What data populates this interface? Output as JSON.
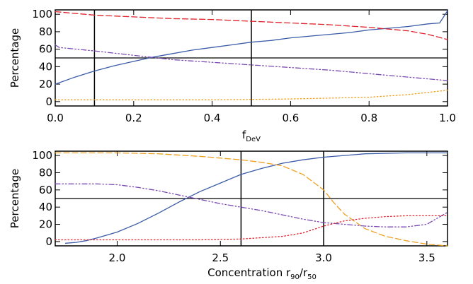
{
  "colors": {
    "blue": "#3a5ba8",
    "red": "#e0202a",
    "purple": "#7a4ab3",
    "orange": "#f0a020",
    "axis": "#000000"
  },
  "chart_data": [
    {
      "type": "line",
      "xlabel_main": "f",
      "xlabel_sub": "DeV",
      "ylabel": "Percentage",
      "xlim": [
        0.0,
        1.0
      ],
      "ylim": [
        -5,
        105
      ],
      "xticks": [
        0.0,
        0.2,
        0.4,
        0.6,
        0.8,
        1.0
      ],
      "xtick_labels": [
        "0.0",
        "0.2",
        "0.4",
        "0.6",
        "0.8",
        "1.0"
      ],
      "yticks": [
        0,
        20,
        40,
        60,
        80,
        100
      ],
      "ytick_labels": [
        "0",
        "20",
        "40",
        "60",
        "80",
        "100"
      ],
      "vlines": [
        0.1,
        0.5
      ],
      "hlines": [
        50
      ],
      "series": [
        {
          "color_key": "blue",
          "style": "solid",
          "points": [
            [
              0.0,
              20
            ],
            [
              0.05,
              28
            ],
            [
              0.1,
              35
            ],
            [
              0.15,
              41
            ],
            [
              0.2,
              46
            ],
            [
              0.25,
              51
            ],
            [
              0.3,
              55
            ],
            [
              0.35,
              59
            ],
            [
              0.4,
              62
            ],
            [
              0.45,
              65
            ],
            [
              0.5,
              68
            ],
            [
              0.55,
              70
            ],
            [
              0.6,
              73
            ],
            [
              0.65,
              75
            ],
            [
              0.7,
              77
            ],
            [
              0.75,
              79
            ],
            [
              0.8,
              82
            ],
            [
              0.85,
              84
            ],
            [
              0.9,
              86
            ],
            [
              0.95,
              89
            ],
            [
              0.98,
              90
            ],
            [
              0.99,
              97
            ],
            [
              1.0,
              104
            ]
          ]
        },
        {
          "color_key": "red",
          "style": "dash",
          "points": [
            [
              0.0,
              103
            ],
            [
              0.1,
              99
            ],
            [
              0.2,
              97
            ],
            [
              0.3,
              95
            ],
            [
              0.4,
              94
            ],
            [
              0.5,
              92
            ],
            [
              0.6,
              90
            ],
            [
              0.7,
              88
            ],
            [
              0.8,
              85
            ],
            [
              0.9,
              81
            ],
            [
              0.95,
              77
            ],
            [
              1.0,
              71
            ]
          ]
        },
        {
          "color_key": "purple",
          "style": "dashdotdot",
          "points": [
            [
              0.0,
              65
            ],
            [
              0.01,
              62
            ],
            [
              0.1,
              58
            ],
            [
              0.2,
              53
            ],
            [
              0.3,
              48
            ],
            [
              0.4,
              45
            ],
            [
              0.5,
              42
            ],
            [
              0.6,
              39
            ],
            [
              0.7,
              36
            ],
            [
              0.8,
              32
            ],
            [
              0.9,
              28
            ],
            [
              1.0,
              24
            ]
          ]
        },
        {
          "color_key": "orange",
          "style": "dot",
          "points": [
            [
              0.0,
              2
            ],
            [
              0.2,
              2
            ],
            [
              0.4,
              2
            ],
            [
              0.6,
              3
            ],
            [
              0.7,
              4
            ],
            [
              0.8,
              5
            ],
            [
              0.9,
              8
            ],
            [
              1.0,
              13
            ]
          ]
        }
      ]
    },
    {
      "type": "line",
      "xlabel_main": "Concentration r",
      "xlabel_sub1": "90",
      "xlabel_slash": "/r",
      "xlabel_sub2": "50",
      "ylabel": "Percentage",
      "xlim": [
        1.7,
        3.6
      ],
      "ylim": [
        -5,
        105
      ],
      "xticks": [
        2.0,
        2.5,
        3.0,
        3.5
      ],
      "xtick_labels": [
        "2.0",
        "2.5",
        "3.0",
        "3.5"
      ],
      "yticks": [
        0,
        20,
        40,
        60,
        80,
        100
      ],
      "ytick_labels": [
        "0",
        "20",
        "40",
        "60",
        "80",
        "100"
      ],
      "vlines": [
        2.6,
        3.0
      ],
      "hlines": [
        50
      ],
      "series": [
        {
          "color_key": "blue",
          "style": "solid",
          "points": [
            [
              1.75,
              -2
            ],
            [
              1.8,
              -1
            ],
            [
              1.85,
              1
            ],
            [
              1.9,
              4
            ],
            [
              2.0,
              11
            ],
            [
              2.1,
              21
            ],
            [
              2.2,
              33
            ],
            [
              2.3,
              46
            ],
            [
              2.4,
              58
            ],
            [
              2.5,
              68
            ],
            [
              2.6,
              78
            ],
            [
              2.7,
              85
            ],
            [
              2.8,
              91
            ],
            [
              2.9,
              95
            ],
            [
              3.0,
              98
            ],
            [
              3.1,
              100
            ],
            [
              3.2,
              102
            ],
            [
              3.4,
              103
            ],
            [
              3.6,
              103
            ]
          ]
        },
        {
          "color_key": "orange",
          "style": "dash",
          "points": [
            [
              1.7,
              103
            ],
            [
              2.0,
              103
            ],
            [
              2.2,
              102
            ],
            [
              2.4,
              99
            ],
            [
              2.6,
              95
            ],
            [
              2.7,
              92
            ],
            [
              2.8,
              88
            ],
            [
              2.9,
              78
            ],
            [
              3.0,
              60
            ],
            [
              3.05,
              45
            ],
            [
              3.1,
              32
            ],
            [
              3.2,
              15
            ],
            [
              3.3,
              6
            ],
            [
              3.4,
              1
            ],
            [
              3.5,
              -3
            ],
            [
              3.6,
              -5
            ]
          ]
        },
        {
          "color_key": "purple",
          "style": "dashdotdot",
          "points": [
            [
              1.7,
              67
            ],
            [
              1.9,
              67
            ],
            [
              2.0,
              66
            ],
            [
              2.1,
              63
            ],
            [
              2.2,
              59
            ],
            [
              2.3,
              54
            ],
            [
              2.4,
              49
            ],
            [
              2.5,
              44
            ],
            [
              2.6,
              40
            ],
            [
              2.7,
              36
            ],
            [
              2.8,
              31
            ],
            [
              2.9,
              26
            ],
            [
              3.0,
              22
            ],
            [
              3.1,
              20
            ],
            [
              3.2,
              18
            ],
            [
              3.3,
              17
            ],
            [
              3.4,
              17
            ],
            [
              3.5,
              20
            ],
            [
              3.6,
              34
            ]
          ]
        },
        {
          "color_key": "red",
          "style": "dot",
          "points": [
            [
              1.7,
              2
            ],
            [
              2.0,
              2
            ],
            [
              2.4,
              2
            ],
            [
              2.6,
              3
            ],
            [
              2.8,
              6
            ],
            [
              2.9,
              10
            ],
            [
              3.0,
              18
            ],
            [
              3.1,
              24
            ],
            [
              3.2,
              27
            ],
            [
              3.3,
              29
            ],
            [
              3.4,
              30
            ],
            [
              3.5,
              30
            ],
            [
              3.6,
              30
            ]
          ]
        }
      ]
    }
  ]
}
